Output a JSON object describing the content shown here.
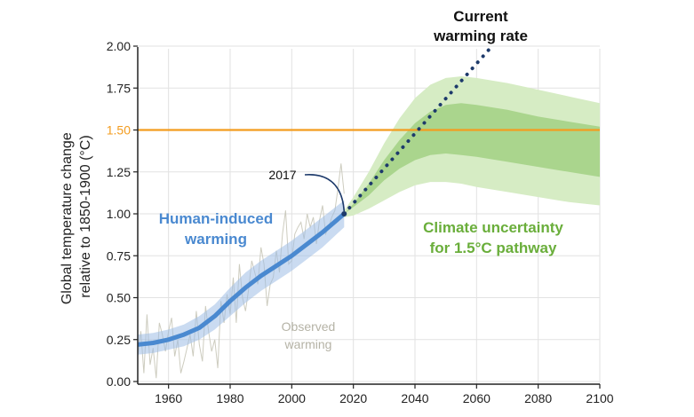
{
  "chart_data": {
    "type": "line",
    "ylabel_line1": "Global temperature change",
    "ylabel_line2": "relative to 1850-1900 (°C)",
    "xlim": [
      1950,
      2100
    ],
    "ylim": [
      0,
      2.0
    ],
    "x_ticks": [
      1960,
      1980,
      2000,
      2020,
      2040,
      2060,
      2080,
      2100
    ],
    "y_ticks": [
      "0.00",
      "0.25",
      "0.50",
      "0.75",
      "1.00",
      "1.25",
      "1.50",
      "1.75",
      "2.00"
    ],
    "y_tick_values": [
      0,
      0.25,
      0.5,
      0.75,
      1.0,
      1.25,
      1.5,
      1.75,
      2.0
    ],
    "grid": true,
    "reference_line": {
      "y": 1.5,
      "color": "#f39c1f"
    },
    "human_induced": {
      "name_line1": "Human-induced",
      "name_line2": "warming",
      "color": "#4a89d0",
      "x": [
        1950,
        1955,
        1960,
        1965,
        1970,
        1975,
        1980,
        1985,
        1990,
        1995,
        2000,
        2005,
        2010,
        2017
      ],
      "y": [
        0.22,
        0.23,
        0.25,
        0.28,
        0.32,
        0.39,
        0.48,
        0.56,
        0.63,
        0.69,
        0.75,
        0.82,
        0.89,
        1.0
      ],
      "band_low": [
        0.16,
        0.17,
        0.19,
        0.21,
        0.25,
        0.31,
        0.39,
        0.47,
        0.54,
        0.6,
        0.66,
        0.73,
        0.8,
        0.92
      ],
      "band_high": [
        0.28,
        0.29,
        0.31,
        0.34,
        0.39,
        0.46,
        0.56,
        0.65,
        0.72,
        0.78,
        0.84,
        0.91,
        0.98,
        1.08
      ]
    },
    "marker_2017": {
      "label": "2017",
      "x": 2017,
      "y": 1.0
    },
    "current_rate": {
      "label_line1": "Current",
      "label_line2": "warming rate",
      "color": "#1d3a6b",
      "x": [
        2017,
        2065
      ],
      "y": [
        1.0,
        2.0
      ]
    },
    "uncertainty": {
      "label_line1": "Climate uncertainty",
      "label_line2": "for 1.5°C pathway",
      "color": "#7ab648",
      "x": [
        2017,
        2020,
        2025,
        2030,
        2035,
        2040,
        2045,
        2050,
        2055,
        2060,
        2070,
        2080,
        2090,
        2100
      ],
      "outer_high": [
        1.02,
        1.1,
        1.25,
        1.42,
        1.57,
        1.69,
        1.77,
        1.81,
        1.82,
        1.81,
        1.78,
        1.74,
        1.7,
        1.66
      ],
      "inner_high": [
        1.0,
        1.06,
        1.18,
        1.32,
        1.44,
        1.54,
        1.61,
        1.65,
        1.66,
        1.65,
        1.62,
        1.58,
        1.55,
        1.52
      ],
      "inner_low": [
        1.0,
        1.04,
        1.11,
        1.2,
        1.27,
        1.32,
        1.35,
        1.36,
        1.35,
        1.34,
        1.31,
        1.28,
        1.25,
        1.22
      ],
      "outer_low": [
        0.98,
        0.99,
        1.03,
        1.08,
        1.13,
        1.17,
        1.19,
        1.19,
        1.18,
        1.16,
        1.13,
        1.1,
        1.07,
        1.05
      ]
    },
    "observed": {
      "label_line1": "Observed",
      "label_line2": "warming",
      "color": "#c8c6b8",
      "x": [
        1950,
        1951,
        1952,
        1953,
        1954,
        1955,
        1956,
        1957,
        1958,
        1959,
        1960,
        1961,
        1962,
        1963,
        1964,
        1965,
        1966,
        1967,
        1968,
        1969,
        1970,
        1971,
        1972,
        1973,
        1974,
        1975,
        1976,
        1977,
        1978,
        1979,
        1980,
        1981,
        1982,
        1983,
        1984,
        1985,
        1986,
        1987,
        1988,
        1989,
        1990,
        1991,
        1992,
        1993,
        1994,
        1995,
        1996,
        1997,
        1998,
        1999,
        2000,
        2001,
        2002,
        2003,
        2004,
        2005,
        2006,
        2007,
        2008,
        2009,
        2010,
        2011,
        2012,
        2013,
        2014,
        2015,
        2016,
        2017
      ],
      "y": [
        0.15,
        0.3,
        0.05,
        0.4,
        0.1,
        0.2,
        0.02,
        0.35,
        0.28,
        0.18,
        0.3,
        0.38,
        0.15,
        0.25,
        0.05,
        0.12,
        0.2,
        0.28,
        0.15,
        0.42,
        0.22,
        0.12,
        0.45,
        0.3,
        0.18,
        0.25,
        0.08,
        0.48,
        0.35,
        0.52,
        0.4,
        0.62,
        0.35,
        0.7,
        0.5,
        0.42,
        0.55,
        0.72,
        0.65,
        0.58,
        0.8,
        0.7,
        0.45,
        0.58,
        0.62,
        0.78,
        0.65,
        0.88,
        1.02,
        0.7,
        0.72,
        0.88,
        0.92,
        0.95,
        0.85,
        1.0,
        0.92,
        0.98,
        0.82,
        0.96,
        1.05,
        0.88,
        0.92,
        0.98,
        1.02,
        1.15,
        1.3,
        1.12
      ]
    }
  }
}
